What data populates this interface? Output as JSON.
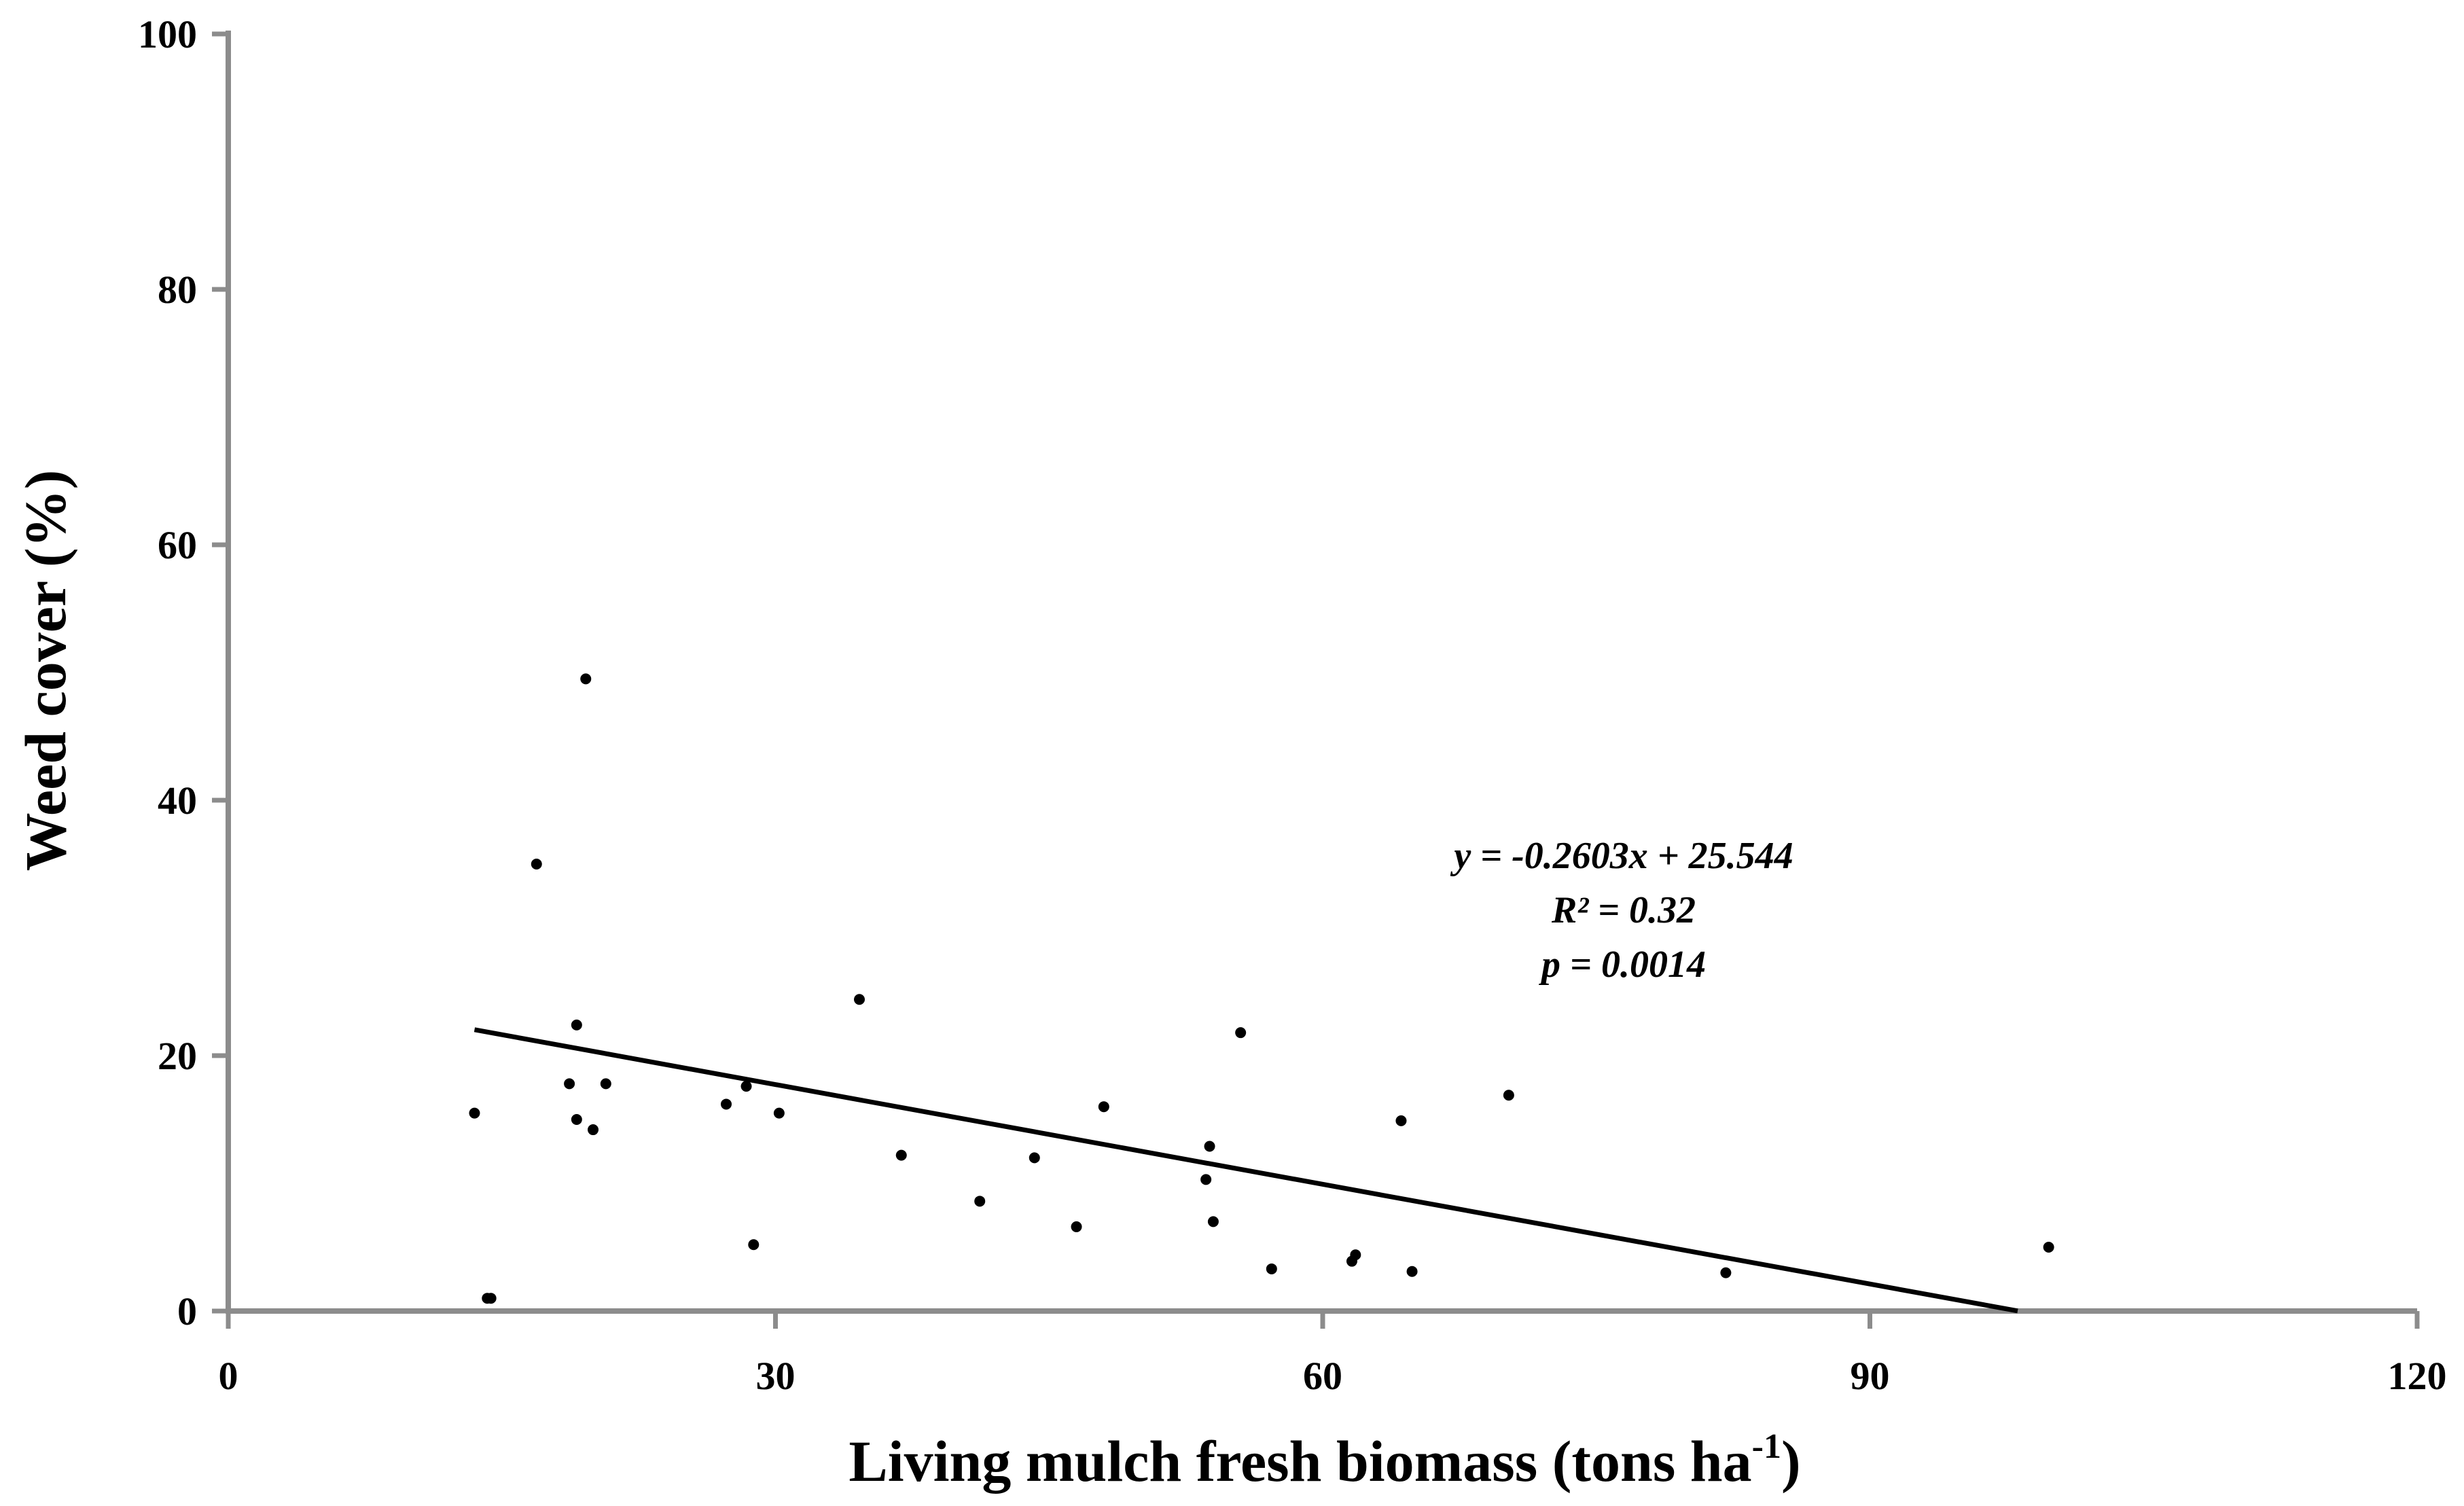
{
  "chart_data": {
    "type": "scatter",
    "title": "",
    "xlabel": "Living mulch fresh biomass (tons ha",
    "xlabel_sup": "-1",
    "xlabel_close": ")",
    "ylabel": "Weed cover (%)",
    "xlim": [
      0,
      120
    ],
    "ylim": [
      0,
      100
    ],
    "xticks": [
      0,
      30,
      60,
      90,
      120
    ],
    "yticks": [
      0,
      20,
      40,
      60,
      80,
      100
    ],
    "grid": false,
    "points": [
      {
        "x": 13.5,
        "y": 15.5
      },
      {
        "x": 14.2,
        "y": 1.0
      },
      {
        "x": 14.4,
        "y": 1.0
      },
      {
        "x": 16.9,
        "y": 35.0
      },
      {
        "x": 18.7,
        "y": 17.8
      },
      {
        "x": 19.1,
        "y": 22.4
      },
      {
        "x": 19.1,
        "y": 15.0
      },
      {
        "x": 19.6,
        "y": 49.5
      },
      {
        "x": 20.0,
        "y": 14.2
      },
      {
        "x": 20.7,
        "y": 17.8
      },
      {
        "x": 27.3,
        "y": 16.2
      },
      {
        "x": 28.4,
        "y": 17.6
      },
      {
        "x": 28.8,
        "y": 5.2
      },
      {
        "x": 30.2,
        "y": 15.5
      },
      {
        "x": 34.6,
        "y": 24.4
      },
      {
        "x": 36.9,
        "y": 12.2
      },
      {
        "x": 41.2,
        "y": 8.6
      },
      {
        "x": 44.2,
        "y": 12.0
      },
      {
        "x": 46.5,
        "y": 6.6
      },
      {
        "x": 48.0,
        "y": 16.0
      },
      {
        "x": 53.6,
        "y": 10.3
      },
      {
        "x": 53.8,
        "y": 12.9
      },
      {
        "x": 54.0,
        "y": 7.0
      },
      {
        "x": 55.5,
        "y": 21.8
      },
      {
        "x": 57.2,
        "y": 3.3
      },
      {
        "x": 61.6,
        "y": 3.9
      },
      {
        "x": 61.8,
        "y": 4.4
      },
      {
        "x": 64.3,
        "y": 14.9
      },
      {
        "x": 64.9,
        "y": 3.1
      },
      {
        "x": 70.2,
        "y": 16.9
      },
      {
        "x": 82.1,
        "y": 3.0
      },
      {
        "x": 99.8,
        "y": 5.0
      }
    ],
    "trendline": {
      "slope": -0.2603,
      "intercept": 25.544,
      "x_range": [
        13.5,
        98.1
      ]
    },
    "annotations": {
      "equation": "y = -0.2603x + 25.544",
      "r2": "R² = 0.32",
      "p": "p = 0.0014"
    },
    "colors": {
      "axis": "#8c8c8c",
      "marker": "#000000",
      "trendline": "#000000"
    }
  }
}
